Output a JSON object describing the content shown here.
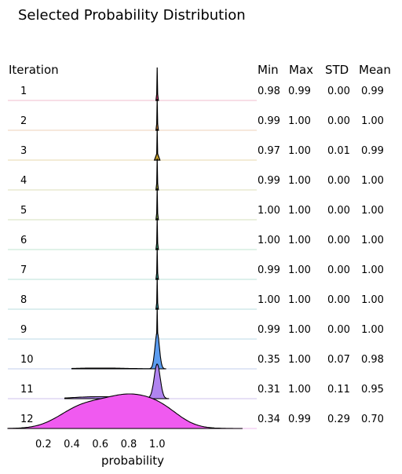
{
  "chart_data": {
    "type": "ridgeline",
    "title": "Selected Probability Distribution",
    "row_header": "Iteration",
    "stat_headers": [
      "Min",
      "Max",
      "STD",
      "Mean"
    ],
    "xlabel": "probability",
    "xlim": [
      -0.05,
      1.7
    ],
    "xticks": [
      0.2,
      0.4,
      0.6,
      0.8,
      1.0
    ],
    "xtick_labels": [
      "0.2",
      "0.4",
      "0.6",
      "0.8",
      "1.0"
    ],
    "rows": [
      {
        "iteration": "1",
        "min": "0.98",
        "max": "0.99",
        "std": "0.00",
        "mean": "0.99",
        "color": "#f6d3de",
        "fill": "#e83a7a",
        "kind": "spike"
      },
      {
        "iteration": "2",
        "min": "0.99",
        "max": "1.00",
        "std": "0.00",
        "mean": "1.00",
        "color": "#f3e1d0",
        "fill": "#d98a3a",
        "kind": "spike"
      },
      {
        "iteration": "3",
        "min": "0.97",
        "max": "1.00",
        "std": "0.01",
        "mean": "0.99",
        "color": "#efe6c8",
        "fill": "#c9a12a",
        "kind": "spike"
      },
      {
        "iteration": "4",
        "min": "0.99",
        "max": "1.00",
        "std": "0.00",
        "mean": "1.00",
        "color": "#e9ead0",
        "fill": "#a6a334",
        "kind": "spike"
      },
      {
        "iteration": "5",
        "min": "1.00",
        "max": "1.00",
        "std": "0.00",
        "mean": "1.00",
        "color": "#e3ecd3",
        "fill": "#84a94a",
        "kind": "spike"
      },
      {
        "iteration": "6",
        "min": "1.00",
        "max": "1.00",
        "std": "0.00",
        "mean": "1.00",
        "color": "#d5ede0",
        "fill": "#3fae7a",
        "kind": "spike"
      },
      {
        "iteration": "7",
        "min": "0.99",
        "max": "1.00",
        "std": "0.00",
        "mean": "1.00",
        "color": "#d2ece6",
        "fill": "#36ac96",
        "kind": "spike"
      },
      {
        "iteration": "8",
        "min": "1.00",
        "max": "1.00",
        "std": "0.00",
        "mean": "1.00",
        "color": "#d1e9ea",
        "fill": "#34a8ac",
        "kind": "spike"
      },
      {
        "iteration": "9",
        "min": "0.99",
        "max": "1.00",
        "std": "0.00",
        "mean": "1.00",
        "color": "#d2e6ef",
        "fill": "#3aa0c8",
        "kind": "spike"
      },
      {
        "iteration": "10",
        "min": "0.35",
        "max": "1.00",
        "std": "0.07",
        "mean": "0.98",
        "color": "#d5dff3",
        "fill": "#5b9cf0",
        "kind": "narrow"
      },
      {
        "iteration": "11",
        "min": "0.31",
        "max": "1.00",
        "std": "0.11",
        "mean": "0.95",
        "color": "#dfd5f4",
        "fill": "#b084f0",
        "kind": "medium"
      },
      {
        "iteration": "12",
        "min": "0.34",
        "max": "0.99",
        "std": "0.29",
        "mean": "0.70",
        "color": "#f3d2f3",
        "fill": "#f05af0",
        "kind": "wide"
      }
    ]
  }
}
